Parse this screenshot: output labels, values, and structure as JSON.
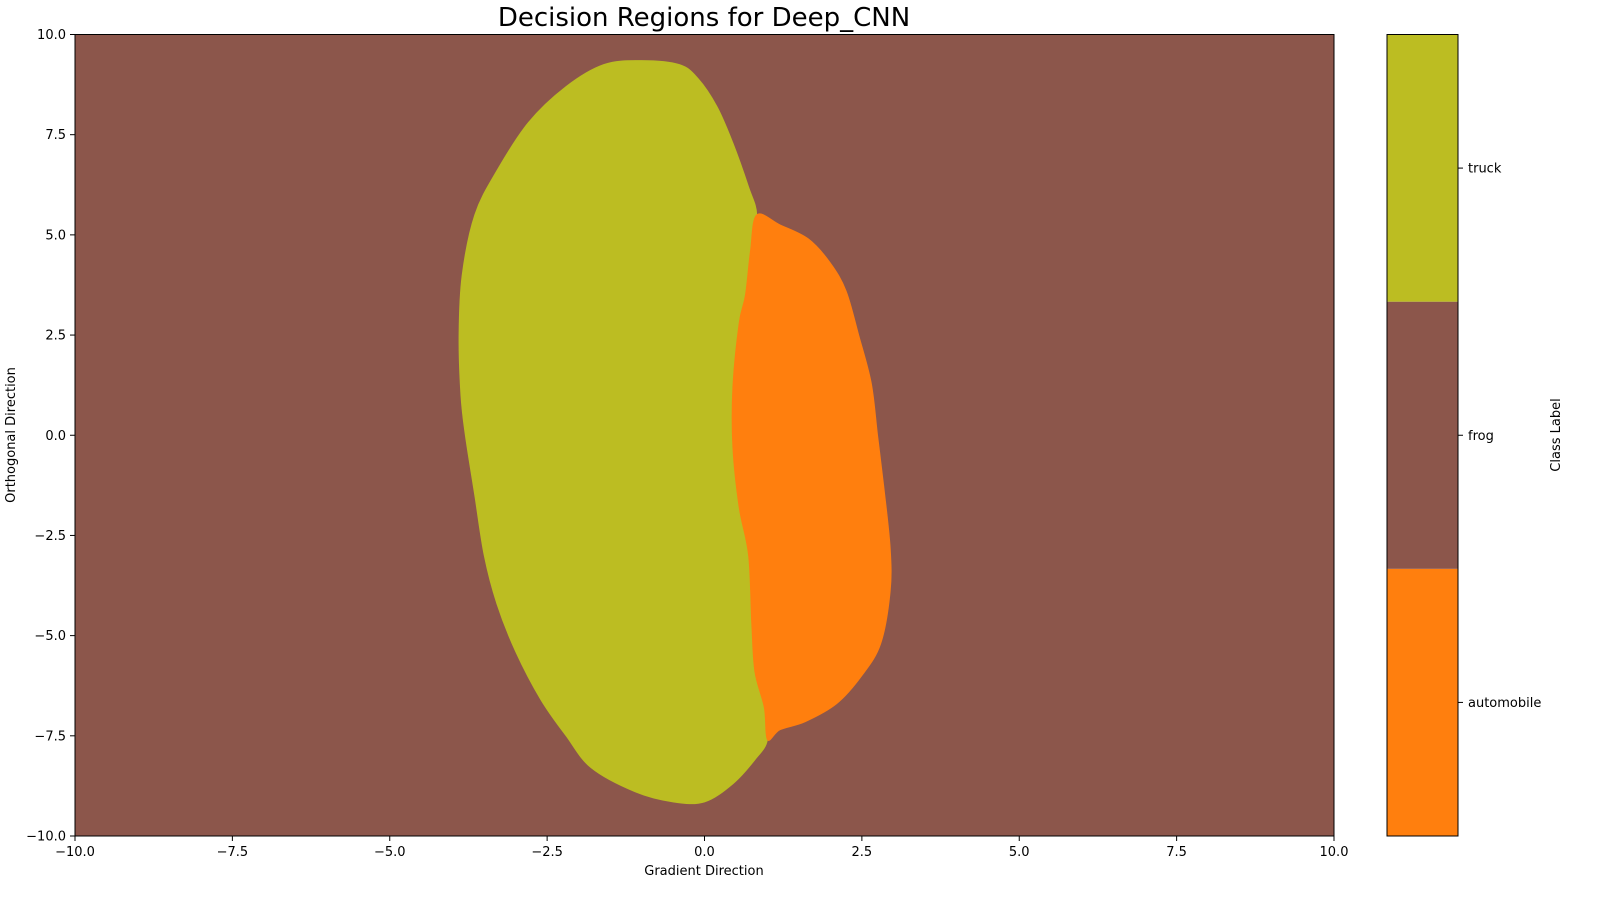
{
  "chart_data": {
    "type": "heatmap",
    "title": "Decision Regions for Deep_CNN",
    "xlabel": "Gradient Direction",
    "ylabel": "Orthogonal Direction",
    "xlim": [
      -10.0,
      10.0
    ],
    "ylim": [
      -10.0,
      10.0
    ],
    "x_ticks": [
      -10.0,
      -7.5,
      -5.0,
      -2.5,
      0.0,
      2.5,
      5.0,
      7.5,
      10.0
    ],
    "x_tick_labels": [
      "−10.0",
      "−7.5",
      "−5.0",
      "−2.5",
      "0.0",
      "2.5",
      "5.0",
      "7.5",
      "10.0"
    ],
    "y_ticks": [
      10.0,
      7.5,
      5.0,
      2.5,
      0.0,
      -2.5,
      -5.0,
      -7.5,
      -10.0
    ],
    "y_tick_labels": [
      "10.0",
      "7.5",
      "5.0",
      "2.5",
      "0.0",
      "−2.5",
      "−5.0",
      "−7.5",
      "−10.0"
    ],
    "grid": false,
    "background_class": "frog",
    "regions": [
      {
        "class": "truck",
        "color": "#bcbd22",
        "boundary": [
          [
            0.83,
            5.5
          ],
          [
            0.7,
            6.2
          ],
          [
            0.45,
            7.3
          ],
          [
            0.2,
            8.2
          ],
          [
            -0.1,
            8.9
          ],
          [
            -0.4,
            9.25
          ],
          [
            -1.0,
            9.35
          ],
          [
            -1.6,
            9.25
          ],
          [
            -2.2,
            8.7
          ],
          [
            -2.8,
            7.8
          ],
          [
            -3.3,
            6.6
          ],
          [
            -3.65,
            5.5
          ],
          [
            -3.85,
            4.0
          ],
          [
            -3.9,
            2.5
          ],
          [
            -3.87,
            1.0
          ],
          [
            -3.8,
            0.0
          ],
          [
            -3.65,
            -1.5
          ],
          [
            -3.5,
            -3.0
          ],
          [
            -3.3,
            -4.2
          ],
          [
            -3.0,
            -5.4
          ],
          [
            -2.6,
            -6.6
          ],
          [
            -2.2,
            -7.5
          ],
          [
            -1.8,
            -8.3
          ],
          [
            -1.1,
            -8.9
          ],
          [
            -0.5,
            -9.15
          ],
          [
            0.0,
            -9.15
          ],
          [
            0.45,
            -8.7
          ],
          [
            0.8,
            -8.1
          ],
          [
            1.0,
            -7.6
          ],
          [
            0.95,
            -6.8
          ],
          [
            0.8,
            -5.9
          ],
          [
            0.75,
            -4.7
          ],
          [
            0.7,
            -3.0
          ],
          [
            0.55,
            -1.8
          ],
          [
            0.45,
            -0.3
          ],
          [
            0.45,
            1.2
          ],
          [
            0.55,
            2.8
          ],
          [
            0.65,
            3.5
          ],
          [
            0.73,
            4.6
          ]
        ]
      },
      {
        "class": "automobile",
        "color": "#ff7f0e",
        "boundary": [
          [
            0.83,
            5.5
          ],
          [
            1.2,
            5.25
          ],
          [
            1.65,
            4.9
          ],
          [
            2.0,
            4.3
          ],
          [
            2.25,
            3.6
          ],
          [
            2.45,
            2.5
          ],
          [
            2.65,
            1.3
          ],
          [
            2.75,
            0.0
          ],
          [
            2.85,
            -1.3
          ],
          [
            2.95,
            -2.8
          ],
          [
            2.95,
            -3.9
          ],
          [
            2.8,
            -5.2
          ],
          [
            2.5,
            -6.0
          ],
          [
            2.1,
            -6.7
          ],
          [
            1.6,
            -7.15
          ],
          [
            1.2,
            -7.35
          ],
          [
            1.0,
            -7.6
          ],
          [
            0.95,
            -6.8
          ],
          [
            0.8,
            -5.9
          ],
          [
            0.75,
            -4.7
          ],
          [
            0.7,
            -3.0
          ],
          [
            0.55,
            -1.8
          ],
          [
            0.45,
            -0.3
          ],
          [
            0.45,
            1.2
          ],
          [
            0.55,
            2.8
          ],
          [
            0.65,
            3.5
          ],
          [
            0.73,
            4.6
          ]
        ]
      }
    ],
    "colorbar": {
      "label": "Class Label",
      "classes": [
        {
          "name": "automobile",
          "color": "#ff7f0e"
        },
        {
          "name": "frog",
          "color": "#8c564b"
        },
        {
          "name": "truck",
          "color": "#bcbd22"
        }
      ]
    }
  }
}
